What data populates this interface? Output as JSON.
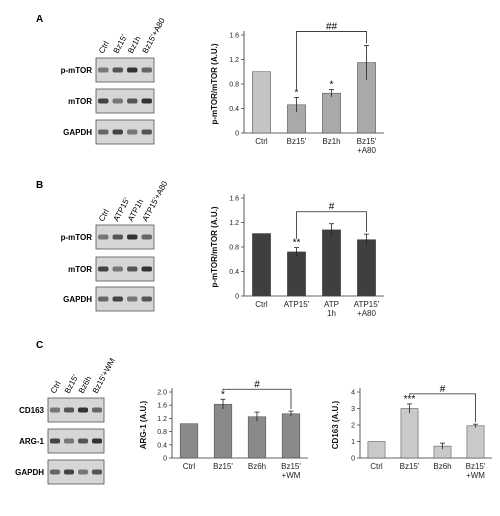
{
  "panels": [
    {
      "letter": "A",
      "blot": {
        "lanes": [
          "Ctrl",
          "Bz15'",
          "Bz1h",
          "Bz15'+A80"
        ],
        "rows": [
          "p-mTOR",
          "mTOR",
          "GAPDH"
        ]
      },
      "chart_data": {
        "type": "bar",
        "categories": [
          [
            "Ctrl"
          ],
          [
            "Bz15'"
          ],
          [
            "Bz1h"
          ],
          [
            "Bz15'",
            "+A80"
          ]
        ],
        "values": [
          1.0,
          0.46,
          0.65,
          1.15
        ],
        "errors": [
          0.0,
          0.12,
          0.06,
          0.28
        ],
        "significance": [
          "",
          "*",
          "*",
          ""
        ],
        "bracket": {
          "from": 1,
          "to": 3,
          "label": "##"
        },
        "ylabel": "p-mTOR/mTOR (A.U.)",
        "ylim": [
          0,
          1.6
        ],
        "yticks": [
          "0",
          "0.4",
          "0.8",
          "1.2",
          "1.6"
        ],
        "bar_color": "#a9a9a9",
        "ctrl_color": "#c4c4c4"
      }
    },
    {
      "letter": "B",
      "blot": {
        "lanes": [
          "Ctrl",
          "ATP15'",
          "ATP1h",
          "ATP15'+A80"
        ],
        "rows": [
          "p-mTOR",
          "mTOR",
          "GAPDH"
        ]
      },
      "chart_data": {
        "type": "bar",
        "categories": [
          [
            "Ctrl"
          ],
          [
            "ATP15'"
          ],
          [
            "ATP",
            "1h"
          ],
          [
            "ATP15'",
            "+A80"
          ]
        ],
        "values": [
          1.02,
          0.72,
          1.08,
          0.92
        ],
        "errors": [
          0.0,
          0.07,
          0.1,
          0.09
        ],
        "significance": [
          "",
          "**",
          "",
          ""
        ],
        "bracket": {
          "from": 1,
          "to": 3,
          "label": "#"
        },
        "ylabel": "p-mTOR/mTOR (A.U.)",
        "ylim": [
          0,
          1.6
        ],
        "yticks": [
          "0",
          "0.4",
          "0.8",
          "1.2",
          "1.6"
        ],
        "bar_color": "#3f3f3f",
        "ctrl_color": "#3f3f3f"
      }
    },
    {
      "letter": "C",
      "blot": {
        "lanes": [
          "Ctrl",
          "Bz15'",
          "Bz6h",
          "Bz15'+WM"
        ],
        "rows": [
          "CD163",
          "ARG-1",
          "GAPDH"
        ]
      },
      "charts": [
        {
          "type": "bar",
          "categories": [
            [
              "Ctrl"
            ],
            [
              "Bz15'"
            ],
            [
              "Bz6h"
            ],
            [
              "Bz15'",
              "+WM"
            ]
          ],
          "values": [
            1.04,
            1.63,
            1.25,
            1.34
          ],
          "errors": [
            0.0,
            0.15,
            0.14,
            0.08
          ],
          "significance": [
            "",
            "*",
            "",
            ""
          ],
          "bracket": {
            "from": 1,
            "to": 3,
            "label": "#"
          },
          "ylabel": "ARG-1 (A.U.)",
          "ylim": [
            0,
            2.0
          ],
          "yticks": [
            "0",
            "0.4",
            "0.8",
            "1.2",
            "1.6",
            "2.0"
          ],
          "bar_color": "#8a8a8a",
          "ctrl_color": "#8a8a8a"
        },
        {
          "type": "bar",
          "categories": [
            [
              "Ctrl"
            ],
            [
              "Bz15'"
            ],
            [
              "Bz6h"
            ],
            [
              "Bz15'",
              "+WM"
            ]
          ],
          "values": [
            1.0,
            3.0,
            0.72,
            1.95
          ],
          "errors": [
            0.0,
            0.28,
            0.18,
            0.1
          ],
          "significance": [
            "",
            "***",
            "",
            ""
          ],
          "bracket": {
            "from": 1,
            "to": 3,
            "label": "#"
          },
          "ylabel": "CD163 (A.U.)",
          "ylim": [
            0,
            4
          ],
          "yticks": [
            "0",
            "1",
            "2",
            "3",
            "4"
          ],
          "bar_color": "#c9c9c9",
          "ctrl_color": "#c9c9c9"
        }
      ]
    }
  ]
}
